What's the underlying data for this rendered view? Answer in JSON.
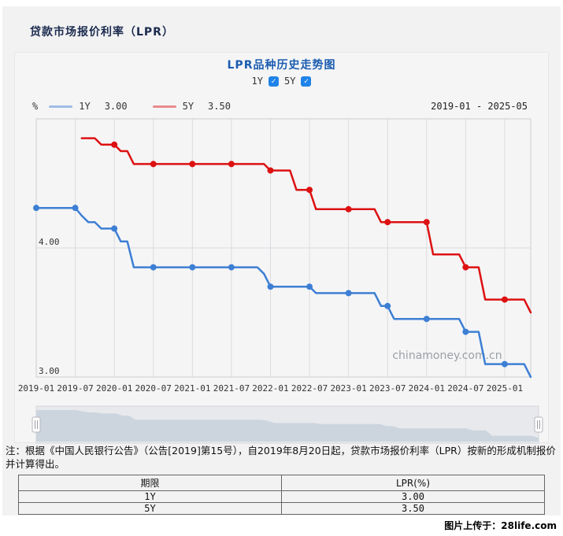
{
  "page": {
    "title": "贷款市场报价利率（LPR）",
    "note": "注：根据《中国人民银行公告》（公告[2019]第15号），自2019年8月20日起，贷款市场报价利率（LPR）按新的形成机制报价并计算得出。",
    "footer": "图片上传于：28life.com"
  },
  "chart": {
    "title": "LPR品种历史走势图",
    "unit": "%",
    "date_range": "2019-01 - 2025-05",
    "watermark": "chinamoney.com.cn",
    "checkboxes": [
      {
        "label": "1Y",
        "checked": true
      },
      {
        "label": "5Y",
        "checked": true
      }
    ],
    "legend": [
      {
        "label": "1Y",
        "value": "3.00",
        "swatch": "#a0bce6"
      },
      {
        "label": "5Y",
        "value": "3.50",
        "swatch": "#e98b8b"
      }
    ]
  },
  "chart_data": {
    "type": "line",
    "title": "LPR品种历史走势图",
    "ylabel": "%",
    "ylim": [
      3.0,
      5.0
    ],
    "x_range": [
      "2019-01",
      "2025-05"
    ],
    "y_tick_labels": [
      {
        "value": 4.0,
        "label": "4.00"
      },
      {
        "value": 3.0,
        "label": "3.00"
      }
    ],
    "x_tick_labels": [
      "2019-01",
      "2019-07",
      "2020-01",
      "2020-07",
      "2021-01",
      "2021-07",
      "2022-01",
      "2022-07",
      "2023-01",
      "2023-07",
      "2024-01",
      "2024-07",
      "2025-01"
    ],
    "colors": {
      "grid": "#dcdce0",
      "border": "#cfcfd3",
      "tick_text": "#333333",
      "watermark": "#9aa0a6"
    },
    "series": [
      {
        "name": "1Y",
        "color": "#3d7fd4",
        "latest": 3.0,
        "steps": [
          [
            "2019-01",
            4.31
          ],
          [
            "2019-08",
            4.25
          ],
          [
            "2019-09",
            4.2
          ],
          [
            "2019-11",
            4.15
          ],
          [
            "2020-02",
            4.05
          ],
          [
            "2020-04",
            3.85
          ],
          [
            "2021-12",
            3.8
          ],
          [
            "2022-01",
            3.7
          ],
          [
            "2022-08",
            3.65
          ],
          [
            "2023-06",
            3.55
          ],
          [
            "2023-08",
            3.45
          ],
          [
            "2024-07",
            3.35
          ],
          [
            "2024-10",
            3.1
          ],
          [
            "2025-05",
            3.0
          ]
        ]
      },
      {
        "name": "5Y",
        "color": "#dd1111",
        "latest": 3.5,
        "steps": [
          [
            "2019-08",
            4.85
          ],
          [
            "2019-11",
            4.8
          ],
          [
            "2020-02",
            4.75
          ],
          [
            "2020-04",
            4.65
          ],
          [
            "2022-01",
            4.6
          ],
          [
            "2022-05",
            4.45
          ],
          [
            "2022-08",
            4.3
          ],
          [
            "2023-06",
            4.2
          ],
          [
            "2024-02",
            3.95
          ],
          [
            "2024-07",
            3.85
          ],
          [
            "2024-10",
            3.6
          ],
          [
            "2025-05",
            3.5
          ]
        ]
      }
    ],
    "navigator": {
      "series": "1Y",
      "fill": "#ccd4de",
      "track": "#e7e9ec"
    }
  },
  "table": {
    "headers": [
      "期限",
      "LPR(%)"
    ],
    "rows": [
      [
        "1Y",
        "3.00"
      ],
      [
        "5Y",
        "3.50"
      ]
    ]
  }
}
